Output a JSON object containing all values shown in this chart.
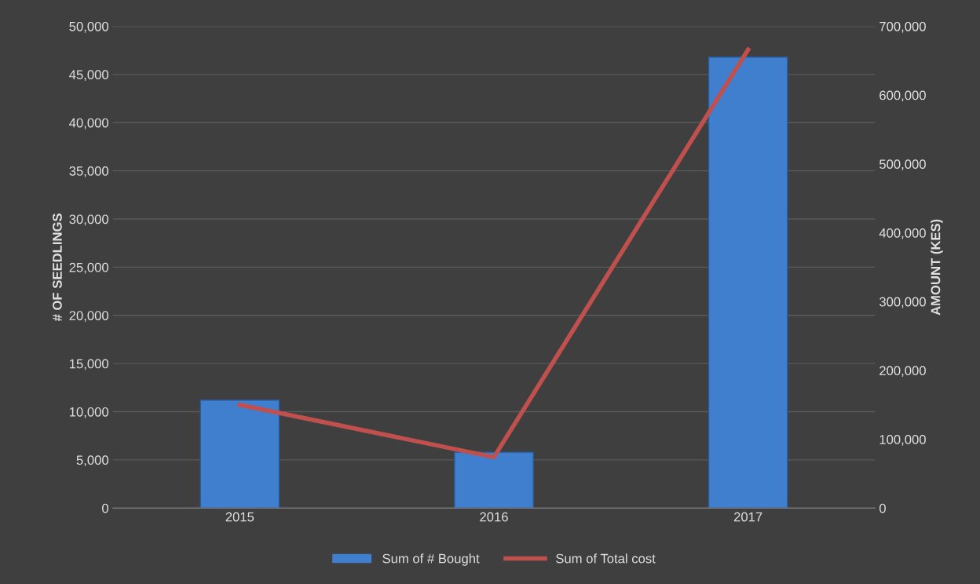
{
  "chart_data": {
    "type": "bar",
    "categories": [
      "2015",
      "2016",
      "2017"
    ],
    "ylabel": "# OF SEEDLINGS",
    "y2label": "AMOUNT (KES)",
    "series": [
      {
        "name": "Sum of # Bought",
        "color": "#3f7fce",
        "values": [
          11200,
          5800,
          46800
        ]
      },
      {
        "name": "Sum of Total cost",
        "type": "line",
        "axis": "y2",
        "color": "#c0504d",
        "values": [
          150000,
          74000,
          666000
        ]
      }
    ],
    "ylim": [
      0,
      50000
    ],
    "yticks": [
      0,
      {
        "value": 5000,
        "label": "5,000"
      },
      {
        "value": 10000,
        "label": "10,000"
      },
      {
        "value": 15000,
        "label": "15,000"
      },
      {
        "value": 20000,
        "label": "20,000"
      },
      {
        "value": 25000,
        "label": "25,000"
      },
      {
        "value": 30000,
        "label": "30,000"
      },
      {
        "value": 35000,
        "label": "35,000"
      },
      {
        "value": 40000,
        "label": "40,000"
      },
      {
        "value": 45000,
        "label": "45,000"
      },
      {
        "value": 50000,
        "label": "50,000"
      }
    ],
    "y2lim": [
      0,
      700000
    ],
    "y2ticks": [
      0,
      {
        "value": 100000,
        "label": "100,000"
      },
      {
        "value": 200000,
        "label": "200,000"
      },
      {
        "value": 300000,
        "label": "300,000"
      },
      {
        "value": 400000,
        "label": "400,000"
      },
      {
        "value": 500000,
        "label": "500,000"
      },
      {
        "value": 600000,
        "label": "600,000"
      },
      {
        "value": 700000,
        "label": "700,000"
      }
    ],
    "grid": "y",
    "legend": "bottom",
    "marker": "none",
    "line_style": "solid"
  }
}
